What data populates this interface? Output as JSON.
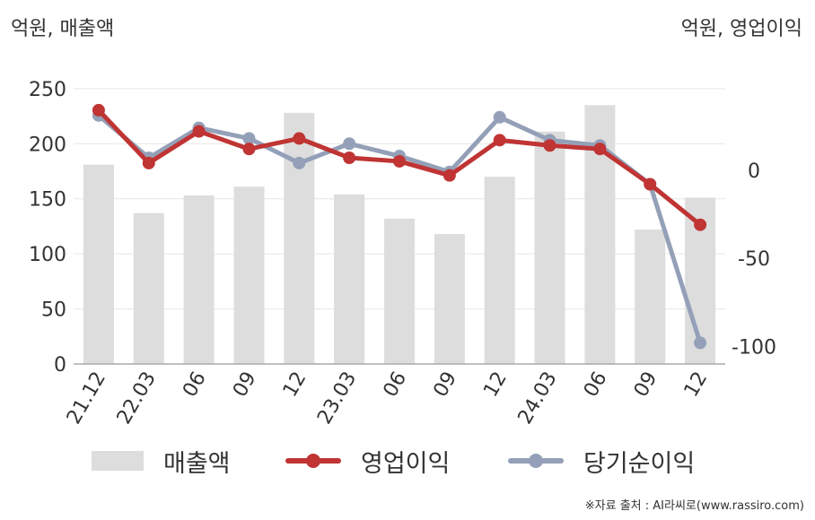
{
  "units": {
    "left": "억원, 매출액",
    "right": "억원, 영업이익"
  },
  "source": "※자료 출처 : AI라씨로(www.rassiro.com)",
  "chart_data": {
    "type": "bar+line",
    "categories": [
      "21.12",
      "22.03",
      "06",
      "09",
      "12",
      "23.03",
      "06",
      "09",
      "12",
      "24.03",
      "06",
      "09",
      "12"
    ],
    "left_axis": {
      "ylim": [
        0,
        280
      ],
      "ticks": [
        0,
        50,
        100,
        150,
        200,
        250
      ]
    },
    "right_axis": {
      "ylim": [
        -110,
        65
      ],
      "ticks": [
        0,
        -50,
        -100
      ]
    },
    "series": [
      {
        "name": "매출액",
        "kind": "bar",
        "axis": "left",
        "color": "#dddddd",
        "values": [
          181,
          137,
          153,
          161,
          228,
          154,
          132,
          118,
          170,
          211,
          235,
          122,
          151
        ]
      },
      {
        "name": "영업이익",
        "kind": "line",
        "axis": "right",
        "color": "#c03434",
        "values": [
          34,
          4,
          22,
          12,
          18,
          7,
          5,
          -3,
          17,
          14,
          12,
          -8,
          -31
        ]
      },
      {
        "name": "당기순이익",
        "kind": "line",
        "axis": "right",
        "color": "#94a0b8",
        "values": [
          31,
          7,
          24,
          18,
          4,
          15,
          8,
          -1,
          30,
          17,
          14,
          -8,
          -98
        ]
      }
    ],
    "grid": true,
    "legend_position": "bottom"
  }
}
